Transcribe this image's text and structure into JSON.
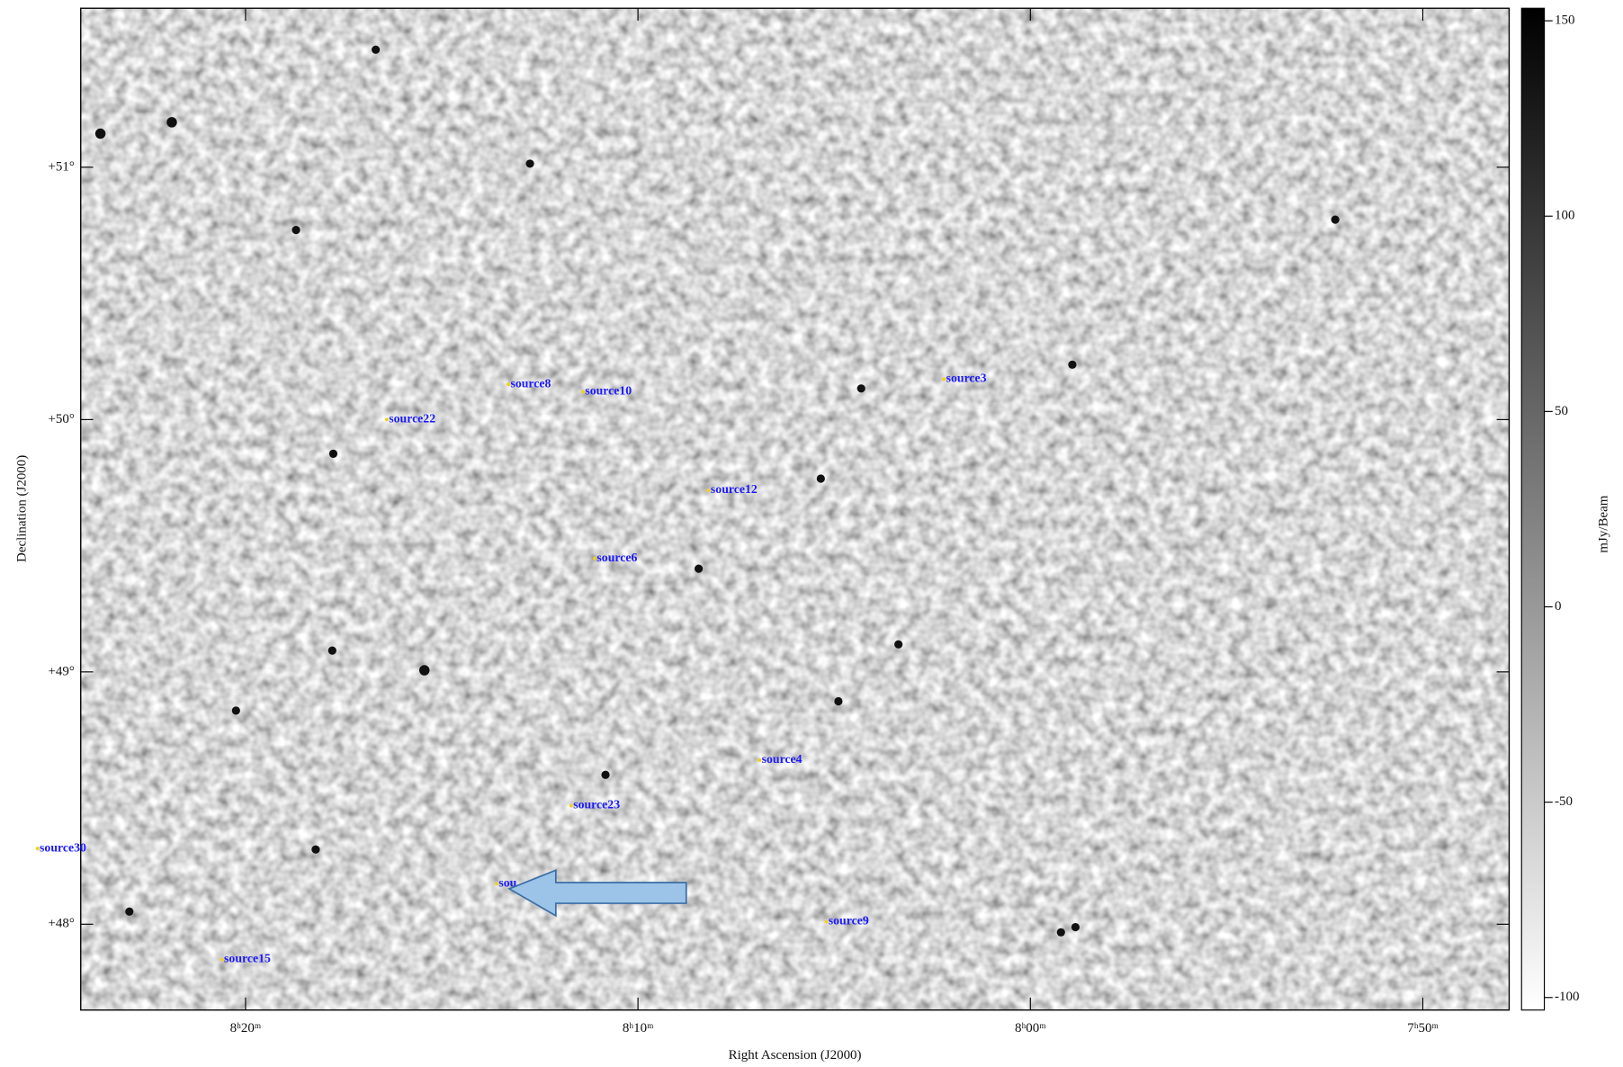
{
  "chart_data": {
    "type": "image",
    "xlabel": "Right Ascension (J2000)",
    "ylabel": "Declination (J2000)",
    "xlim": [
      504.2,
      467.8
    ],
    "xticks": [
      {
        "value": 500,
        "label": "8ʰ20ᵐ"
      },
      {
        "value": 490,
        "label": "8ʰ10ᵐ"
      },
      {
        "value": 480,
        "label": "8ʰ00ᵐ"
      },
      {
        "value": 470,
        "label": "7ʰ50ᵐ"
      }
    ],
    "ylim": [
      47.66,
      51.63
    ],
    "yticks": [
      {
        "value": 51,
        "label": "+51°"
      },
      {
        "value": 50,
        "label": "+50°"
      },
      {
        "value": 49,
        "label": "+49°"
      },
      {
        "value": 48,
        "label": "+48°"
      }
    ],
    "colorbar": {
      "label": "mJy/Beam",
      "lim": [
        -103.2,
        153.2
      ],
      "ticks": [
        150,
        100,
        50,
        0,
        -50,
        -100
      ]
    },
    "sources": {
      "color": "#1a1aff",
      "names": [
        "source8",
        "source10",
        "source22",
        "source3",
        "source12",
        "source6",
        "source4",
        "source23",
        "source30",
        "sou",
        "source9",
        "source15"
      ],
      "x": [
        493.3,
        491.4,
        496.4,
        482.2,
        488.2,
        491.1,
        486.9,
        491.7,
        505.3,
        493.6,
        485.2,
        500.6
      ],
      "y": [
        50.14,
        50.11,
        50.0,
        50.16,
        49.72,
        49.45,
        48.65,
        48.47,
        48.3,
        48.16,
        48.01,
        47.86
      ]
    }
  }
}
